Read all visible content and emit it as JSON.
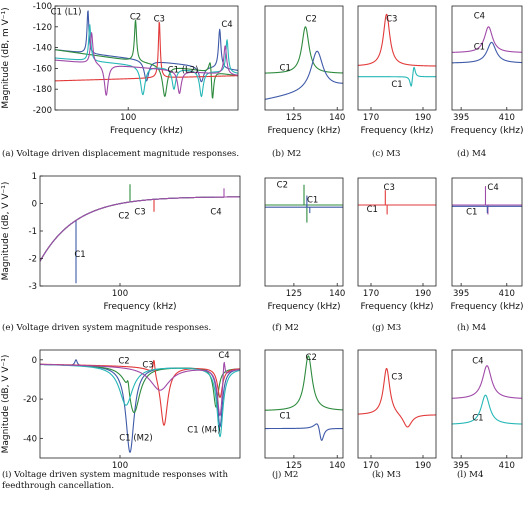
{
  "colors": {
    "blue": "#3f5aa8",
    "green": "#2e8b3e",
    "red": "#e23a3a",
    "cyan": "#27b7b7",
    "purple": "#a04aa8",
    "frame": "#222222"
  },
  "chart_data": [
    {
      "id": "a",
      "type": "line",
      "caption": "(a) Voltage driven displacement magnitude responses.",
      "xlabel": "Frequency (kHz)",
      "ylabel": "Magnitude (dB, m V⁻¹)",
      "xlim": [
        60,
        160
      ],
      "ylim": [
        -200,
        -100
      ],
      "xticks": [
        100
      ],
      "yticks": [
        -100,
        -120,
        -140,
        -160,
        -180,
        -200
      ],
      "annotations": [
        {
          "text": "C1 (L1)",
          "x": 66,
          "y": -108
        },
        {
          "text": "C2",
          "x": 104,
          "y": -113
        },
        {
          "text": "C3",
          "x": 117,
          "y": -115
        },
        {
          "text": "C4",
          "x": 154,
          "y": -120
        },
        {
          "text": "C1 (L2)",
          "x": 130,
          "y": -164
        }
      ],
      "series": [
        {
          "color_key": "blue",
          "base": -150,
          "slope": -0.2,
          "res": [
            [
              78,
              42,
              0.6
            ],
            [
              150,
              38,
              0.8
            ]
          ],
          "anti": [
            [
              110,
              20,
              1.5
            ],
            [
              140,
              15,
              1.5
            ]
          ],
          "floor": -200
        },
        {
          "color_key": "green",
          "base": -152,
          "slope": -0.25,
          "res": [
            [
              104,
              40,
              0.7
            ],
            [
              145,
              20,
              1
            ]
          ],
          "anti": [
            [
              120,
              30,
              1.5
            ],
            [
              146,
              35,
              0.8
            ]
          ],
          "floor": -200
        },
        {
          "color_key": "red",
          "base": -170,
          "slope": 0.05,
          "res": [
            [
              117,
              55,
              0.6
            ]
          ],
          "anti": [],
          "floor": -200
        },
        {
          "color_key": "cyan",
          "base": -156,
          "slope": -0.15,
          "res": [
            [
              79,
              35,
              0.7
            ],
            [
              154,
              32,
              0.8
            ]
          ],
          "anti": [
            [
              108,
              28,
              1.5
            ],
            [
              125,
              20,
              1.2
            ],
            [
              140,
              25,
              1.2
            ]
          ],
          "floor": -200
        },
        {
          "color_key": "purple",
          "base": -158,
          "slope": -0.15,
          "res": [
            [
              80,
              30,
              0.8
            ],
            [
              153,
              28,
              0.9
            ]
          ],
          "anti": [
            [
              88,
              30,
              1.2
            ],
            [
              128,
              22,
              1.2
            ]
          ],
          "floor": -200
        }
      ]
    },
    {
      "id": "b",
      "type": "line",
      "caption": "(b) M2",
      "xlabel": "Frequency (kHz)",
      "ylabel": "",
      "xlim": [
        115,
        142
      ],
      "ylim": [
        -200,
        -100
      ],
      "xticks": [
        125,
        140
      ],
      "yticks": [],
      "annotations": [
        {
          "text": "C2",
          "x": 131,
          "y": -115
        },
        {
          "text": "C1",
          "x": 122,
          "y": -162
        }
      ],
      "series": [
        {
          "color_key": "green",
          "base": -165,
          "slope": 0,
          "res": [
            [
              129,
              45,
              1.5
            ]
          ],
          "anti": [],
          "floor": -200
        },
        {
          "color_key": "blue",
          "base": -198,
          "slope": 0.5,
          "res": [
            [
              133,
              38,
              2.5
            ]
          ],
          "anti": [],
          "floor": -200
        }
      ]
    },
    {
      "id": "c",
      "type": "line",
      "caption": "(c) M3",
      "xlabel": "Frequency (kHz)",
      "ylabel": "",
      "xlim": [
        165,
        195
      ],
      "ylim": [
        -200,
        -100
      ],
      "xticks": [
        170,
        190
      ],
      "yticks": [],
      "annotations": [
        {
          "text": "C3",
          "x": 178,
          "y": -115
        },
        {
          "text": "C1",
          "x": 180,
          "y": -178
        }
      ],
      "series": [
        {
          "color_key": "red",
          "base": -158,
          "slope": 0,
          "res": [
            [
              176,
              50,
              1.5
            ]
          ],
          "anti": [],
          "floor": -200
        },
        {
          "color_key": "cyan",
          "base": -168,
          "slope": 0,
          "res": [
            [
              186.5,
              12,
              0.6
            ]
          ],
          "anti": [
            [
              185.5,
              12,
              0.6
            ]
          ],
          "floor": -200
        }
      ]
    },
    {
      "id": "d",
      "type": "line",
      "caption": "(d) M4",
      "xlabel": "Frequency (kHz)",
      "ylabel": "",
      "xlim": [
        392,
        415
      ],
      "ylim": [
        -200,
        -100
      ],
      "xticks": [
        395,
        410
      ],
      "yticks": [],
      "annotations": [
        {
          "text": "C4",
          "x": 401,
          "y": -112
        },
        {
          "text": "C1",
          "x": 401,
          "y": -142
        }
      ],
      "series": [
        {
          "color_key": "purple",
          "base": -145,
          "slope": 0,
          "res": [
            [
              404,
              25,
              1.6
            ]
          ],
          "anti": [],
          "floor": -200
        },
        {
          "color_key": "blue",
          "base": -155,
          "slope": 0,
          "res": [
            [
              405,
              20,
              1.8
            ]
          ],
          "anti": [],
          "floor": -200
        }
      ]
    },
    {
      "id": "e",
      "type": "line",
      "caption": "(e) Voltage driven system magnitude responses.",
      "xlabel": "Frequency (kHz)",
      "ylabel": "Magnitude (dB, V V⁻¹)",
      "xlim": [
        60,
        160
      ],
      "ylim": [
        -3,
        1
      ],
      "xticks": [
        100
      ],
      "yticks": [
        1,
        0,
        -1,
        -2,
        -3
      ],
      "annotations": [
        {
          "text": "C1",
          "x": 80,
          "y": -1.95
        },
        {
          "text": "C2",
          "x": 102,
          "y": -0.55
        },
        {
          "text": "C3",
          "x": 110,
          "y": -0.4
        },
        {
          "text": "C4",
          "x": 148,
          "y": -0.4
        }
      ],
      "series": [
        {
          "color_key": "blue",
          "kind": "system",
          "spikes": [
            [
              78,
              -2.9
            ]
          ]
        },
        {
          "color_key": "green",
          "kind": "system",
          "spikes": [
            [
              105,
              0.7
            ]
          ]
        },
        {
          "color_key": "red",
          "kind": "system",
          "spikes": [
            [
              117,
              -0.3
            ]
          ]
        },
        {
          "color_key": "cyan",
          "kind": "system",
          "spikes": []
        },
        {
          "color_key": "purple",
          "kind": "system",
          "spikes": [
            [
              152,
              0.55
            ]
          ]
        }
      ]
    },
    {
      "id": "f",
      "type": "line",
      "caption": "(f) M2",
      "xlabel": "Frequency (kHz)",
      "ylabel": "",
      "xlim": [
        115,
        142
      ],
      "ylim": [
        -3,
        1
      ],
      "xticks": [
        125,
        140
      ],
      "yticks": [],
      "annotations": [
        {
          "text": "C2",
          "x": 121,
          "y": 0.65
        },
        {
          "text": "C1",
          "x": 131.5,
          "y": 0.1
        }
      ],
      "series": [
        {
          "color_key": "green",
          "kind": "flat",
          "level": 0.0,
          "spikes": [
            [
              128.5,
              0.75
            ],
            [
              129.5,
              -0.65
            ]
          ]
        },
        {
          "color_key": "blue",
          "kind": "flat",
          "level": -0.08,
          "spikes": [
            [
              129.5,
              0.35
            ],
            [
              130.5,
              -0.3
            ]
          ]
        }
      ]
    },
    {
      "id": "g",
      "type": "line",
      "caption": "(g) M3",
      "xlabel": "Frequency (kHz)",
      "ylabel": "",
      "xlim": [
        165,
        195
      ],
      "ylim": [
        -3,
        1
      ],
      "xticks": [
        170,
        190
      ],
      "yticks": [],
      "annotations": [
        {
          "text": "C3",
          "x": 177,
          "y": 0.55
        },
        {
          "text": "C1",
          "x": 170.5,
          "y": -0.25
        }
      ],
      "series": [
        {
          "color_key": "red",
          "kind": "flat",
          "level": 0.0,
          "spikes": [
            [
              175.5,
              0.55
            ],
            [
              176.2,
              -0.35
            ]
          ]
        }
      ]
    },
    {
      "id": "h",
      "type": "line",
      "caption": "(h) M4",
      "xlabel": "Frequency (kHz)",
      "ylabel": "",
      "xlim": [
        392,
        415
      ],
      "ylim": [
        -3,
        1
      ],
      "xticks": [
        395,
        410
      ],
      "yticks": [],
      "annotations": [
        {
          "text": "C4",
          "x": 405.5,
          "y": 0.55
        },
        {
          "text": "C1",
          "x": 398.5,
          "y": -0.35
        }
      ],
      "series": [
        {
          "color_key": "purple",
          "kind": "flat",
          "level": 0.0,
          "spikes": [
            [
              403,
              0.7
            ],
            [
              403.8,
              -0.35
            ]
          ]
        },
        {
          "color_key": "blue",
          "kind": "flat",
          "level": -0.05,
          "spikes": [
            [
              403.6,
              -0.3
            ]
          ]
        }
      ]
    },
    {
      "id": "i",
      "type": "line",
      "caption": "(i) Voltage driven system magnitude responses with feedthrough cancellation.",
      "xlabel": "",
      "ylabel": "Magnitude (dB, V V⁻¹)",
      "xlim": [
        60,
        160
      ],
      "ylim": [
        -50,
        5
      ],
      "xticks": [
        100
      ],
      "yticks": [
        0,
        -20,
        -40
      ],
      "annotations": [
        {
          "text": "C2",
          "x": 102,
          "y": -2
        },
        {
          "text": "C3",
          "x": 114,
          "y": -4
        },
        {
          "text": "C4",
          "x": 152,
          "y": 1
        },
        {
          "text": "C1 (M2)",
          "x": 108,
          "y": -41
        },
        {
          "text": "C1 (M4)",
          "x": 142,
          "y": -37
        }
      ],
      "series": [
        {
          "color_key": "blue",
          "base": -3,
          "slope": -0.02,
          "res": [
            [
              78,
              3,
              0.7
            ]
          ],
          "anti": [
            [
              105,
              44,
              2.5
            ],
            [
              150,
              30,
              1.5
            ]
          ],
          "floor": -50
        },
        {
          "color_key": "green",
          "base": -3,
          "slope": -0.02,
          "res": [
            [
              104,
              6,
              0.7
            ]
          ],
          "anti": [
            [
              107,
              24,
              3.5
            ],
            [
              148,
              20,
              1.5
            ]
          ],
          "floor": -50
        },
        {
          "color_key": "red",
          "base": -3,
          "slope": -0.02,
          "res": [
            [
              117,
              8,
              0.6
            ]
          ],
          "anti": [
            [
              122,
              30,
              2.2
            ],
            [
              150,
              15,
              1.5
            ]
          ],
          "floor": -50
        },
        {
          "color_key": "cyan",
          "base": -3,
          "slope": -0.02,
          "res": [],
          "anti": [
            [
              103,
              20,
              4
            ],
            [
              150,
              35,
              1.8
            ]
          ],
          "floor": -50
        },
        {
          "color_key": "purple",
          "base": -3,
          "slope": -0.02,
          "res": [
            [
              152,
              12,
              0.6
            ]
          ],
          "anti": [
            [
              120,
              12,
              6
            ],
            [
              150,
              25,
              1.5
            ]
          ],
          "floor": -50
        }
      ]
    },
    {
      "id": "j",
      "type": "line",
      "caption": "(j) M2",
      "xlabel": "",
      "ylabel": "",
      "xlim": [
        115,
        142
      ],
      "ylim": [
        -50,
        5
      ],
      "xticks": [
        125,
        140
      ],
      "yticks": [],
      "annotations": [
        {
          "text": "C2",
          "x": 131,
          "y": 0
        },
        {
          "text": "C1",
          "x": 122,
          "y": -30
        }
      ],
      "series": [
        {
          "color_key": "green",
          "base": -26,
          "slope": 0,
          "res": [
            [
              130,
              28,
              1.6
            ]
          ],
          "anti": [],
          "floor": -50
        },
        {
          "color_key": "blue",
          "base": -35,
          "slope": 0,
          "res": [
            [
              133.5,
              6,
              1.5
            ]
          ],
          "anti": [
            [
              134.5,
              10,
              1
            ]
          ],
          "floor": -50
        }
      ]
    },
    {
      "id": "k",
      "type": "line",
      "caption": "(k) M3",
      "xlabel": "",
      "ylabel": "",
      "xlim": [
        165,
        195
      ],
      "ylim": [
        -50,
        5
      ],
      "xticks": [
        170,
        190
      ],
      "yticks": [],
      "annotations": [
        {
          "text": "C3",
          "x": 180,
          "y": -10
        }
      ],
      "series": [
        {
          "color_key": "red",
          "base": -28,
          "slope": 0,
          "res": [
            [
              176,
              24,
              1.5
            ]
          ],
          "anti": [
            [
              184,
              7,
              2
            ]
          ],
          "floor": -50
        }
      ]
    },
    {
      "id": "l",
      "type": "line",
      "caption": "(l) M4",
      "xlabel": "",
      "ylabel": "",
      "xlim": [
        392,
        415
      ],
      "ylim": [
        -50,
        5
      ],
      "xticks": [
        395,
        410
      ],
      "yticks": [],
      "annotations": [
        {
          "text": "C4",
          "x": 400.5,
          "y": -2
        },
        {
          "text": "C1",
          "x": 400.5,
          "y": -31
        }
      ],
      "series": [
        {
          "color_key": "purple",
          "base": -20,
          "slope": 0,
          "res": [
            [
              403.5,
              17,
              1.8
            ]
          ],
          "anti": [],
          "floor": -50
        },
        {
          "color_key": "cyan",
          "base": -33,
          "slope": 0,
          "res": [
            [
              403,
              15,
              1.7
            ]
          ],
          "anti": [],
          "floor": -50
        }
      ]
    }
  ]
}
